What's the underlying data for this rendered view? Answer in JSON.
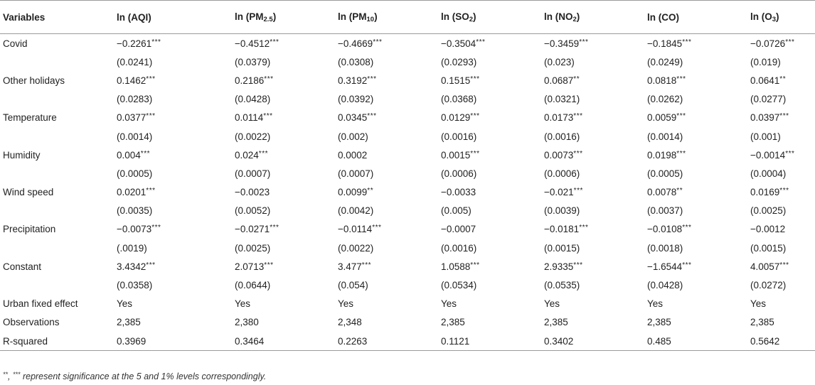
{
  "header": {
    "variables": "Variables",
    "cols": [
      {
        "pre": "ln (AQI)",
        "sub": "",
        "post": ""
      },
      {
        "pre": "ln (PM",
        "sub": "2.5",
        "post": ")"
      },
      {
        "pre": "ln (PM",
        "sub": "10",
        "post": ")"
      },
      {
        "pre": "ln (SO",
        "sub": "2",
        "post": ")"
      },
      {
        "pre": "ln (NO",
        "sub": "2",
        "post": ")"
      },
      {
        "pre": "ln (CO)",
        "sub": "",
        "post": ""
      },
      {
        "pre": "ln (O",
        "sub": "3",
        "post": ")"
      }
    ]
  },
  "rows": [
    {
      "label": "Covid",
      "cells": [
        {
          "v": "−0.2261",
          "s": "***"
        },
        {
          "v": "−0.4512",
          "s": "***"
        },
        {
          "v": "−0.4669",
          "s": "***"
        },
        {
          "v": "−0.3504",
          "s": "***"
        },
        {
          "v": "−0.3459",
          "s": "***"
        },
        {
          "v": "−0.1845",
          "s": "***"
        },
        {
          "v": "−0.0726",
          "s": "***"
        }
      ]
    },
    {
      "label": "",
      "cells": [
        {
          "v": "(0.0241)",
          "s": ""
        },
        {
          "v": "(0.0379)",
          "s": ""
        },
        {
          "v": "(0.0308)",
          "s": ""
        },
        {
          "v": "(0.0293)",
          "s": ""
        },
        {
          "v": "(0.023)",
          "s": ""
        },
        {
          "v": "(0.0249)",
          "s": ""
        },
        {
          "v": "(0.019)",
          "s": ""
        }
      ]
    },
    {
      "label": "Other holidays",
      "cells": [
        {
          "v": "0.1462",
          "s": "***"
        },
        {
          "v": "0.2186",
          "s": "***"
        },
        {
          "v": "0.3192",
          "s": "***"
        },
        {
          "v": "0.1515",
          "s": "***"
        },
        {
          "v": "0.0687",
          "s": "**"
        },
        {
          "v": "0.0818",
          "s": "***"
        },
        {
          "v": "0.0641",
          "s": "**"
        }
      ]
    },
    {
      "label": "",
      "cells": [
        {
          "v": "(0.0283)",
          "s": ""
        },
        {
          "v": "(0.0428)",
          "s": ""
        },
        {
          "v": "(0.0392)",
          "s": ""
        },
        {
          "v": "(0.0368)",
          "s": ""
        },
        {
          "v": "(0.0321)",
          "s": ""
        },
        {
          "v": "(0.0262)",
          "s": ""
        },
        {
          "v": "(0.0277)",
          "s": ""
        }
      ]
    },
    {
      "label": "Temperature",
      "cells": [
        {
          "v": "0.0377",
          "s": "***"
        },
        {
          "v": "0.0114",
          "s": "***"
        },
        {
          "v": "0.0345",
          "s": "***"
        },
        {
          "v": "0.0129",
          "s": "***"
        },
        {
          "v": "0.0173",
          "s": "***"
        },
        {
          "v": "0.0059",
          "s": "***"
        },
        {
          "v": "0.0397",
          "s": "***"
        }
      ]
    },
    {
      "label": "",
      "cells": [
        {
          "v": "(0.0014)",
          "s": ""
        },
        {
          "v": "(0.0022)",
          "s": ""
        },
        {
          "v": "(0.002)",
          "s": ""
        },
        {
          "v": "(0.0016)",
          "s": ""
        },
        {
          "v": "(0.0016)",
          "s": ""
        },
        {
          "v": "(0.0014)",
          "s": ""
        },
        {
          "v": "(0.001)",
          "s": ""
        }
      ]
    },
    {
      "label": "Humidity",
      "cells": [
        {
          "v": "0.004",
          "s": "***"
        },
        {
          "v": "0.024",
          "s": "***"
        },
        {
          "v": "0.0002",
          "s": ""
        },
        {
          "v": "0.0015",
          "s": "***"
        },
        {
          "v": "0.0073",
          "s": "***"
        },
        {
          "v": "0.0198",
          "s": "***"
        },
        {
          "v": "−0.0014",
          "s": "***"
        }
      ]
    },
    {
      "label": "",
      "cells": [
        {
          "v": "(0.0005)",
          "s": ""
        },
        {
          "v": "(0.0007)",
          "s": ""
        },
        {
          "v": "(0.0007)",
          "s": ""
        },
        {
          "v": "(0.0006)",
          "s": ""
        },
        {
          "v": "(0.0006)",
          "s": ""
        },
        {
          "v": "(0.0005)",
          "s": ""
        },
        {
          "v": "(0.0004)",
          "s": ""
        }
      ]
    },
    {
      "label": "Wind speed",
      "cells": [
        {
          "v": "0.0201",
          "s": "***"
        },
        {
          "v": "−0.0023",
          "s": ""
        },
        {
          "v": "0.0099",
          "s": "**"
        },
        {
          "v": "−0.0033",
          "s": ""
        },
        {
          "v": "−0.021",
          "s": "***"
        },
        {
          "v": "0.0078",
          "s": "**"
        },
        {
          "v": "0.0169",
          "s": "***"
        }
      ]
    },
    {
      "label": "",
      "cells": [
        {
          "v": "(0.0035)",
          "s": ""
        },
        {
          "v": "(0.0052)",
          "s": ""
        },
        {
          "v": "(0.0042)",
          "s": ""
        },
        {
          "v": "(0.005)",
          "s": ""
        },
        {
          "v": "(0.0039)",
          "s": ""
        },
        {
          "v": "(0.0037)",
          "s": ""
        },
        {
          "v": "(0.0025)",
          "s": ""
        }
      ]
    },
    {
      "label": "Precipitation",
      "cells": [
        {
          "v": "−0.0073",
          "s": "***"
        },
        {
          "v": "−0.0271",
          "s": "***"
        },
        {
          "v": "−0.0114",
          "s": "***"
        },
        {
          "v": "−0.0007",
          "s": ""
        },
        {
          "v": "−0.0181",
          "s": "***"
        },
        {
          "v": "−0.0108",
          "s": "***"
        },
        {
          "v": "−0.0012",
          "s": ""
        }
      ]
    },
    {
      "label": "",
      "cells": [
        {
          "v": "(.0019)",
          "s": ""
        },
        {
          "v": "(0.0025)",
          "s": ""
        },
        {
          "v": "(0.0022)",
          "s": ""
        },
        {
          "v": "(0.0016)",
          "s": ""
        },
        {
          "v": "(0.0015)",
          "s": ""
        },
        {
          "v": "(0.0018)",
          "s": ""
        },
        {
          "v": "(0.0015)",
          "s": ""
        }
      ]
    },
    {
      "label": "Constant",
      "cells": [
        {
          "v": "3.4342",
          "s": "***"
        },
        {
          "v": "2.0713",
          "s": "***"
        },
        {
          "v": "3.477",
          "s": "***"
        },
        {
          "v": "1.0588",
          "s": "***"
        },
        {
          "v": "2.9335",
          "s": "***"
        },
        {
          "v": "−1.6544",
          "s": "***"
        },
        {
          "v": "4.0057",
          "s": "***"
        }
      ]
    },
    {
      "label": "",
      "cells": [
        {
          "v": "(0.0358)",
          "s": ""
        },
        {
          "v": "(0.0644)",
          "s": ""
        },
        {
          "v": "(0.054)",
          "s": ""
        },
        {
          "v": "(0.0534)",
          "s": ""
        },
        {
          "v": "(0.0535)",
          "s": ""
        },
        {
          "v": "(0.0428)",
          "s": ""
        },
        {
          "v": "(0.0272)",
          "s": ""
        }
      ]
    },
    {
      "label": "Urban fixed effect",
      "cells": [
        {
          "v": "Yes",
          "s": ""
        },
        {
          "v": "Yes",
          "s": ""
        },
        {
          "v": "Yes",
          "s": ""
        },
        {
          "v": "Yes",
          "s": ""
        },
        {
          "v": "Yes",
          "s": ""
        },
        {
          "v": "Yes",
          "s": ""
        },
        {
          "v": "Yes",
          "s": ""
        }
      ]
    },
    {
      "label": "Observations",
      "cells": [
        {
          "v": "2,385",
          "s": ""
        },
        {
          "v": "2,380",
          "s": ""
        },
        {
          "v": "2,348",
          "s": ""
        },
        {
          "v": "2,385",
          "s": ""
        },
        {
          "v": "2,385",
          "s": ""
        },
        {
          "v": "2,385",
          "s": ""
        },
        {
          "v": "2,385",
          "s": ""
        }
      ]
    },
    {
      "label": "R-squared",
      "cells": [
        {
          "v": "0.3969",
          "s": ""
        },
        {
          "v": "0.3464",
          "s": ""
        },
        {
          "v": "0.2263",
          "s": ""
        },
        {
          "v": "0.1121",
          "s": ""
        },
        {
          "v": "0.3402",
          "s": ""
        },
        {
          "v": "0.485",
          "s": ""
        },
        {
          "v": "0.5642",
          "s": ""
        }
      ]
    }
  ],
  "note": {
    "sup1": "**",
    "sep": ", ",
    "sup2": "***",
    "text": " represent significance at the 5 and 1% levels correspondingly."
  }
}
